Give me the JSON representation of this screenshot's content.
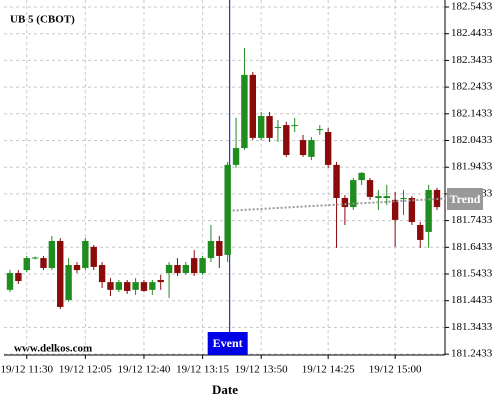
{
  "chart_data": {
    "type": "candlestick",
    "title": "UB 5 (CBOT)",
    "watermark": "www.delkos.com",
    "xlabel": "Date",
    "categories": [
      null,
      null,
      "19/12 11:30",
      null,
      null,
      null,
      null,
      null,
      null,
      "19/12 12:05",
      null,
      null,
      null,
      null,
      null,
      null,
      "19/12 12:40",
      null,
      null,
      null,
      null,
      null,
      null,
      "19/12 13:15",
      null,
      null,
      null,
      null,
      null,
      null,
      "19/12 13:50",
      null,
      null,
      null,
      null,
      null,
      null,
      null,
      "19/12 14:25",
      null,
      null,
      null,
      null,
      null,
      null,
      null,
      "19/12 15:00",
      null,
      null,
      null,
      null,
      null
    ],
    "open": [
      181.484,
      181.547,
      181.558,
      181.603,
      181.603,
      181.566,
      181.667,
      181.446,
      181.577,
      181.566,
      181.645,
      181.577,
      181.513,
      181.484,
      181.513,
      181.484,
      181.513,
      181.484,
      181.521,
      181.547,
      181.577,
      181.547,
      181.603,
      181.547,
      181.603,
      181.667,
      181.615,
      181.952,
      182.015,
      182.289,
      182.053,
      182.135,
      182.09,
      182.101,
      182.098,
      182.045,
      181.982,
      182.083,
      182.075,
      181.952,
      181.828,
      181.794,
      181.895,
      181.895,
      181.828,
      181.828,
      181.821,
      181.824,
      181.828,
      181.727,
      181.701,
      181.858
    ],
    "high": [
      181.559,
      181.558,
      181.611,
      181.609,
      181.611,
      181.686,
      181.678,
      181.603,
      181.588,
      181.678,
      181.652,
      181.588,
      181.528,
      181.521,
      181.521,
      181.528,
      181.521,
      181.521,
      181.54,
      181.588,
      181.603,
      181.588,
      181.633,
      181.611,
      181.727,
      181.686,
      181.963,
      182.128,
      182.39,
      182.3,
      182.15,
      182.15,
      182.12,
      182.113,
      182.128,
      182.064,
      182.056,
      182.101,
      182.09,
      181.963,
      181.839,
      181.903,
      181.925,
      181.903,
      181.858,
      181.877,
      181.851,
      181.858,
      181.835,
      181.738,
      181.877,
      181.866
    ],
    "low": [
      181.476,
      181.506,
      181.551,
      181.598,
      181.558,
      181.558,
      181.412,
      181.439,
      181.547,
      181.558,
      181.558,
      181.491,
      181.461,
      181.476,
      181.469,
      181.465,
      181.476,
      181.465,
      181.484,
      181.453,
      181.536,
      181.54,
      181.536,
      181.54,
      181.588,
      181.566,
      181.588,
      181.941,
      182.008,
      182.045,
      182.045,
      182.038,
      182.038,
      181.982,
      182.075,
      181.982,
      181.97,
      182.064,
      181.941,
      181.641,
      181.727,
      181.783,
      181.877,
      181.821,
      181.783,
      181.802,
      181.645,
      181.764,
      181.727,
      181.641,
      181.641,
      181.783
    ],
    "close": [
      181.547,
      181.517,
      181.603,
      181.605,
      181.566,
      181.667,
      181.42,
      181.577,
      181.558,
      181.667,
      181.57,
      181.513,
      181.484,
      181.513,
      181.48,
      181.513,
      181.48,
      181.513,
      181.513,
      181.577,
      181.547,
      181.577,
      181.547,
      181.603,
      181.667,
      181.611,
      181.952,
      182.015,
      182.289,
      182.053,
      182.135,
      182.053,
      182.094,
      181.989,
      182.101,
      181.989,
      182.045,
      182.086,
      181.952,
      181.828,
      181.794,
      181.895,
      181.922,
      181.832,
      181.835,
      181.835,
      181.746,
      181.828,
      181.738,
      181.671,
      181.858,
      181.794
    ],
    "up_color": "#1e8c1e",
    "down_color": "#8b0a0a",
    "ylim": [
      181.24,
      182.5695
    ],
    "yticks": [
      181.2433,
      181.3433,
      181.4433,
      181.5433,
      181.6433,
      181.7433,
      181.8433,
      181.9433,
      182.0433,
      182.1433,
      182.2433,
      182.3433,
      182.4433,
      182.5433
    ],
    "grid": true,
    "event": {
      "label": "Event",
      "index": 26,
      "color": "#0000e6"
    },
    "trend": {
      "label": "Trend",
      "values": [
        181.781,
        181.826
      ],
      "color": "#999999"
    }
  }
}
